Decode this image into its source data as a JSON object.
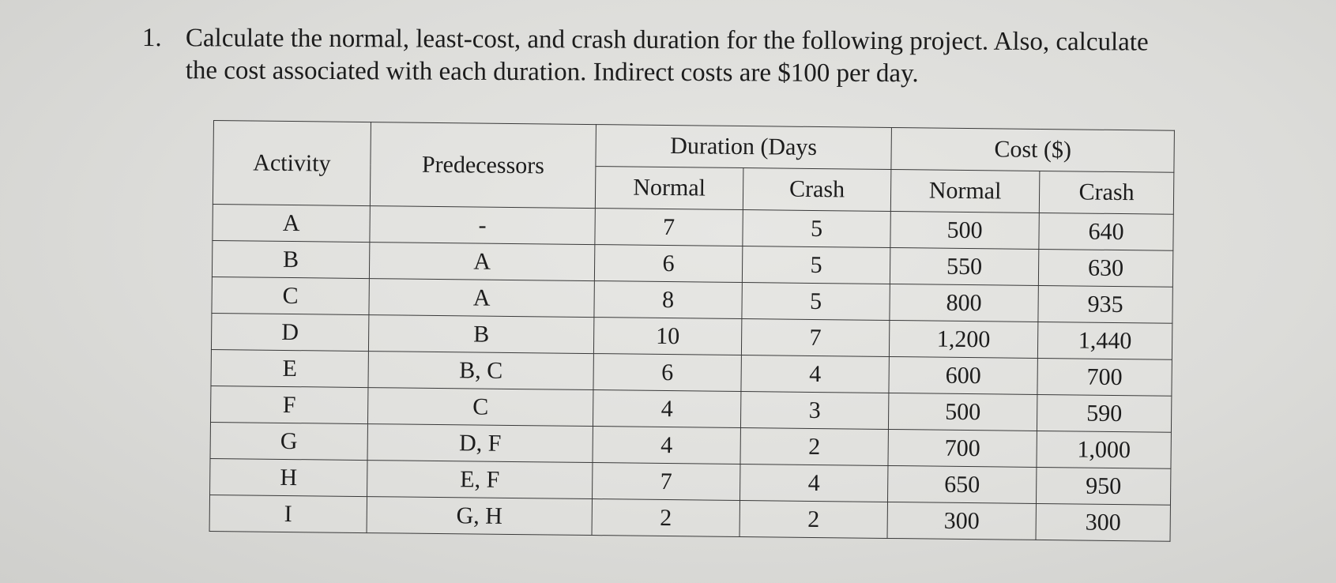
{
  "question": {
    "number": "1.",
    "text": "Calculate the normal, least-cost, and crash duration for the following project. Also, calculate\nthe cost associated with each duration. Indirect costs are $100 per day."
  },
  "table": {
    "headers": {
      "activity": "Activity",
      "predecessors": "Predecessors",
      "duration_group": "Duration (Days",
      "cost_group": "Cost ($)",
      "normal": "Normal",
      "crash": "Crash"
    },
    "rows": [
      {
        "activity": "A",
        "predecessors": "-",
        "dur_normal": "7",
        "dur_crash": "5",
        "cost_normal": "500",
        "cost_crash": "640"
      },
      {
        "activity": "B",
        "predecessors": "A",
        "dur_normal": "6",
        "dur_crash": "5",
        "cost_normal": "550",
        "cost_crash": "630"
      },
      {
        "activity": "C",
        "predecessors": "A",
        "dur_normal": "8",
        "dur_crash": "5",
        "cost_normal": "800",
        "cost_crash": "935"
      },
      {
        "activity": "D",
        "predecessors": "B",
        "dur_normal": "10",
        "dur_crash": "7",
        "cost_normal": "1,200",
        "cost_crash": "1,440"
      },
      {
        "activity": "E",
        "predecessors": "B, C",
        "dur_normal": "6",
        "dur_crash": "4",
        "cost_normal": "600",
        "cost_crash": "700"
      },
      {
        "activity": "F",
        "predecessors": "C",
        "dur_normal": "4",
        "dur_crash": "3",
        "cost_normal": "500",
        "cost_crash": "590"
      },
      {
        "activity": "G",
        "predecessors": "D, F",
        "dur_normal": "4",
        "dur_crash": "2",
        "cost_normal": "700",
        "cost_crash": "1,000"
      },
      {
        "activity": "H",
        "predecessors": "E, F",
        "dur_normal": "7",
        "dur_crash": "4",
        "cost_normal": "650",
        "cost_crash": "950"
      },
      {
        "activity": "I",
        "predecessors": "G, H",
        "dur_normal": "2",
        "dur_crash": "2",
        "cost_normal": "300",
        "cost_crash": "300"
      }
    ]
  }
}
